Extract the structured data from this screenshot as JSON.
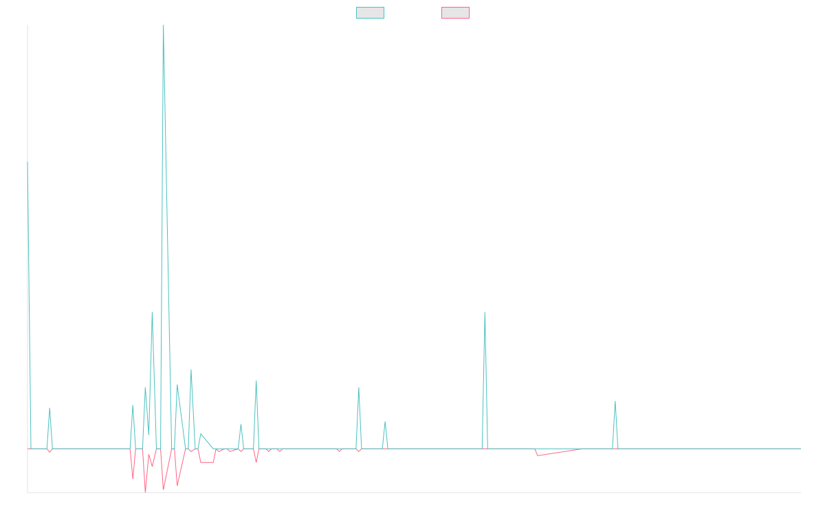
{
  "chart_data": {
    "type": "line",
    "title": "",
    "xlabel": "",
    "ylabel": "",
    "x": [
      0,
      0.25,
      1.4,
      1.6,
      1.8,
      2.0,
      2.3,
      7.4,
      7.6,
      7.8,
      8.3,
      8.5,
      8.75,
      9.0,
      9.3,
      9.6,
      9.8,
      10.4,
      10.6,
      10.8,
      11.4,
      11.6,
      11.8,
      12.1,
      12.3,
      12.5,
      13.4,
      13.6,
      13.8,
      14.2,
      14.4,
      14.6,
      15.2,
      15.4,
      15.6,
      16.3,
      16.5,
      16.7,
      17.2,
      17.4,
      17.6,
      18.0,
      18.2,
      18.4,
      22.3,
      22.5,
      22.7,
      23.7,
      23.9,
      24.1,
      25.6,
      25.8,
      26.0,
      32.8,
      33.0,
      33.2,
      36.4,
      36.6,
      36.8,
      40.0,
      42.2,
      42.4,
      42.6,
      47.3,
      47.5,
      47.7,
      51.0,
      51.2,
      51.4,
      55.8
    ],
    "xlim": [
      0,
      55.8
    ],
    "ylim": [
      -3.2,
      31
    ],
    "grid": false,
    "legend": "top-center",
    "series": [
      {
        "name": "",
        "color": "#4bc0c0",
        "values": [
          21,
          0,
          0,
          3,
          0,
          0,
          0,
          0,
          3.2,
          0,
          0,
          4.5,
          1.0,
          10,
          0,
          0,
          31,
          0,
          0,
          4.7,
          0,
          0,
          5.8,
          0,
          0,
          1.1,
          0,
          0,
          0,
          0,
          0,
          0,
          0,
          1.8,
          0,
          0,
          5.0,
          0,
          0,
          0,
          0,
          0,
          0,
          0,
          0,
          0,
          0,
          0,
          4.5,
          0,
          0,
          2.0,
          0,
          0,
          10,
          0,
          0,
          0,
          0,
          0,
          0,
          3.5,
          0,
          0,
          0,
          0,
          0,
          0,
          0,
          0
        ]
      },
      {
        "name": "",
        "color": "#ff6384",
        "values": [
          0,
          0,
          0,
          -0.25,
          0,
          0,
          0,
          0,
          -2.2,
          0,
          0,
          -3.2,
          -0.4,
          -1.3,
          0,
          0,
          -3.0,
          0,
          0,
          -2.7,
          0,
          0,
          -0.2,
          0,
          0,
          -1.0,
          -1.0,
          0,
          -0.2,
          0,
          0,
          -0.2,
          0,
          -0.2,
          0,
          0,
          -1.0,
          0,
          0,
          -0.2,
          0,
          0,
          -0.2,
          0,
          0,
          -0.2,
          0,
          0,
          -0.2,
          0,
          0,
          0,
          0,
          0,
          0,
          0,
          0,
          0,
          -0.5,
          0,
          0,
          0,
          0,
          0,
          0,
          0,
          0,
          0,
          0,
          0
        ]
      }
    ]
  }
}
